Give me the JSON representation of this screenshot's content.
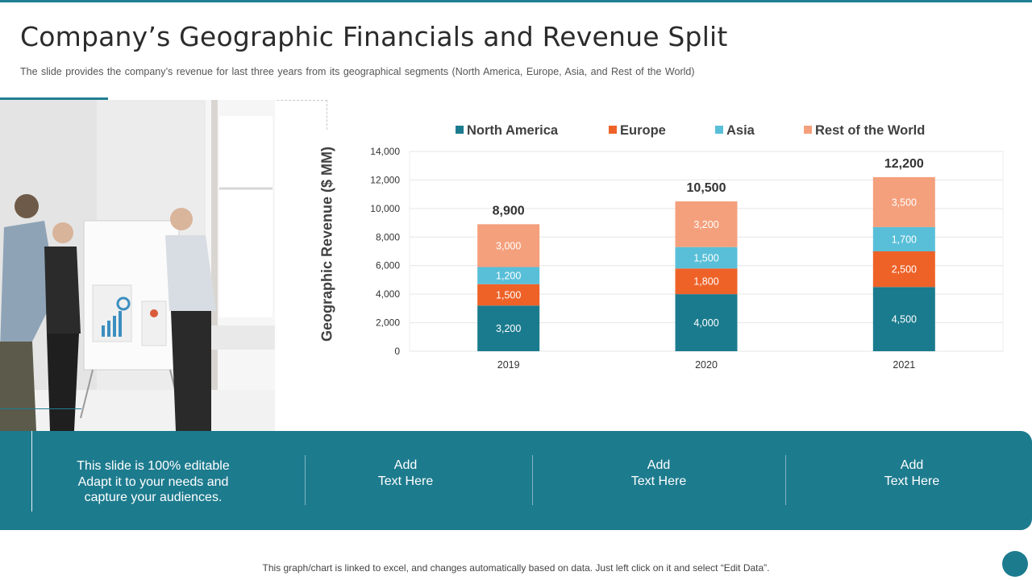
{
  "slide": {
    "title": "Company’s Geographic Financials and Revenue Split",
    "subtitle": "The slide provides  the company’s revenue  for last three years from its geographical segments (North America, Europe, Asia, and Rest of the World)"
  },
  "colors": {
    "accent": "#1f7f93",
    "north_america": "#1b7b8e",
    "europe": "#ee6228",
    "asia": "#59bfd8",
    "rest_of_world": "#f4a07c"
  },
  "chart_data": {
    "type": "bar",
    "stacked": true,
    "ylabel": "Geographic Revenue ($ MM)",
    "xlabel": "",
    "categories": [
      "2019",
      "2020",
      "2021"
    ],
    "series": [
      {
        "name": "North America",
        "values": [
          3200,
          4000,
          4500
        ]
      },
      {
        "name": "Europe",
        "values": [
          1500,
          1800,
          2500
        ]
      },
      {
        "name": "Asia",
        "values": [
          1200,
          1500,
          1700
        ]
      },
      {
        "name": "Rest of the World",
        "values": [
          3000,
          3200,
          3500
        ]
      }
    ],
    "totals": [
      8900,
      10500,
      12200
    ],
    "total_labels": [
      "8,900",
      "10,500",
      "12,200"
    ],
    "value_labels": [
      [
        "3,200",
        "4,000",
        "4,500"
      ],
      [
        "1,500",
        "1,800",
        "2,500"
      ],
      [
        "1,200",
        "1,500",
        "1,700"
      ],
      [
        "3,000",
        "3,200",
        "3,500"
      ]
    ],
    "ylim": [
      0,
      14000
    ],
    "yticks": [
      0,
      2000,
      4000,
      6000,
      8000,
      10000,
      12000,
      14000
    ],
    "ytick_labels": [
      "0",
      "2,000",
      "4,000",
      "6,000",
      "8,000",
      "10,000",
      "12,000",
      "14,000"
    ],
    "legend_position": "top",
    "grid": true
  },
  "banner": {
    "intro": [
      "This slide is 100% editable",
      "Adapt it to your needs and",
      "capture your audiences."
    ],
    "boxes": [
      [
        "Add",
        "Text Here"
      ],
      [
        "Add",
        "Text Here"
      ],
      [
        "Add",
        "Text Here"
      ]
    ]
  },
  "footer": {
    "note": "This graph/chart is linked to excel,  and changes automatically based on data. Just left click on it and select “Edit Data”."
  }
}
